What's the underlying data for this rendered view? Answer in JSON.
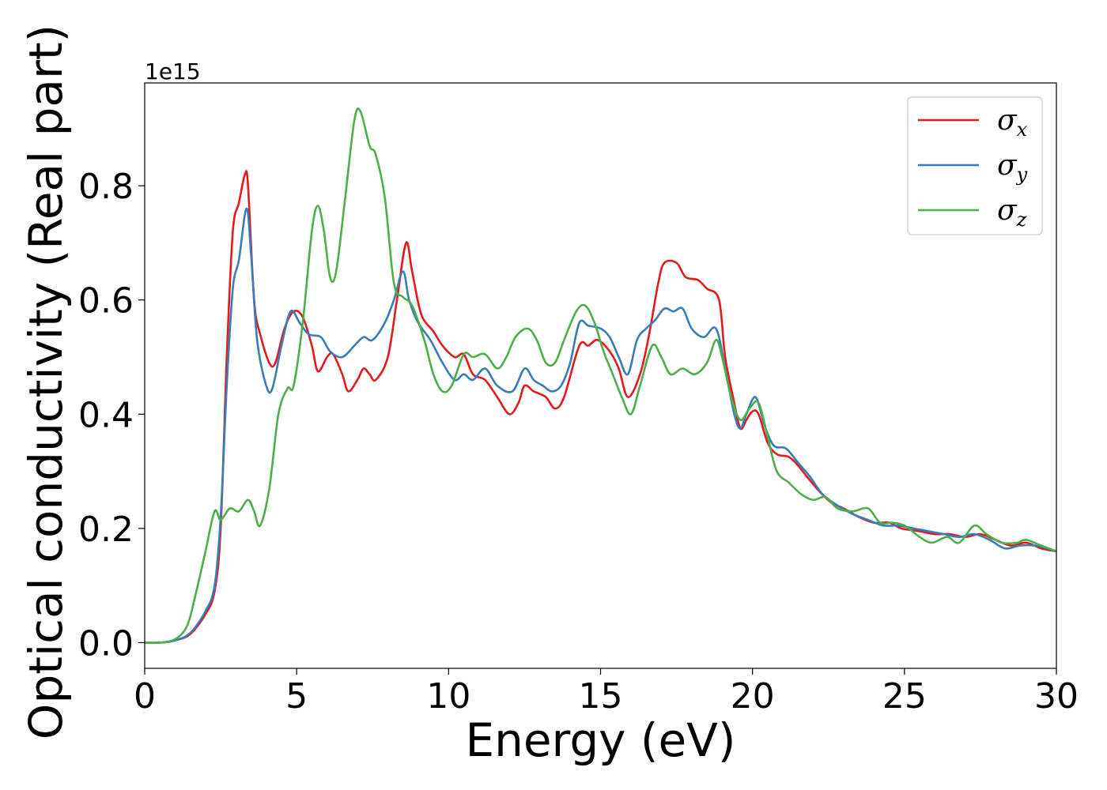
{
  "chart_data": {
    "type": "line",
    "xlabel": "Energy (eV)",
    "ylabel": "Optical conductivity (Real part)",
    "y_offset_label": "1e15",
    "xlim": [
      0,
      30
    ],
    "ylim": [
      -0.045,
      0.98
    ],
    "xticks": [
      0,
      5,
      10,
      15,
      20,
      25,
      30
    ],
    "yticks": [
      0.0,
      0.2,
      0.4,
      0.6,
      0.8
    ],
    "xtick_labels": [
      "0",
      "5",
      "10",
      "15",
      "20",
      "25",
      "30"
    ],
    "ytick_labels": [
      "0.0",
      "0.2",
      "0.4",
      "0.6",
      "0.8"
    ],
    "grid": false,
    "legend_position": "top-right",
    "series": [
      {
        "name": "σx",
        "symbol": "σ",
        "subscript": "x",
        "color": "#e41a1c",
        "points": [
          [
            0,
            0
          ],
          [
            0.5,
            0
          ],
          [
            1,
            0.004
          ],
          [
            1.5,
            0.015
          ],
          [
            2,
            0.05
          ],
          [
            2.3,
            0.09
          ],
          [
            2.5,
            0.2
          ],
          [
            2.7,
            0.5
          ],
          [
            2.9,
            0.72
          ],
          [
            3.1,
            0.77
          ],
          [
            3.3,
            0.82
          ],
          [
            3.4,
            0.8
          ],
          [
            3.6,
            0.6
          ],
          [
            3.8,
            0.54
          ],
          [
            4.1,
            0.49
          ],
          [
            4.3,
            0.49
          ],
          [
            4.6,
            0.55
          ],
          [
            4.9,
            0.58
          ],
          [
            5.2,
            0.57
          ],
          [
            5.5,
            0.52
          ],
          [
            5.7,
            0.475
          ],
          [
            6,
            0.5
          ],
          [
            6.2,
            0.505
          ],
          [
            6.5,
            0.47
          ],
          [
            6.7,
            0.44
          ],
          [
            7,
            0.46
          ],
          [
            7.2,
            0.48
          ],
          [
            7.4,
            0.47
          ],
          [
            7.6,
            0.46
          ],
          [
            8,
            0.5
          ],
          [
            8.3,
            0.6
          ],
          [
            8.6,
            0.7
          ],
          [
            8.8,
            0.65
          ],
          [
            9.1,
            0.575
          ],
          [
            9.5,
            0.545
          ],
          [
            9.8,
            0.52
          ],
          [
            10.2,
            0.5
          ],
          [
            10.5,
            0.505
          ],
          [
            10.8,
            0.47
          ],
          [
            11.2,
            0.46
          ],
          [
            11.6,
            0.43
          ],
          [
            12,
            0.4
          ],
          [
            12.3,
            0.42
          ],
          [
            12.5,
            0.45
          ],
          [
            12.8,
            0.44
          ],
          [
            13.2,
            0.43
          ],
          [
            13.5,
            0.41
          ],
          [
            13.8,
            0.43
          ],
          [
            14.3,
            0.52
          ],
          [
            14.6,
            0.52
          ],
          [
            14.9,
            0.53
          ],
          [
            15.3,
            0.51
          ],
          [
            15.6,
            0.48
          ],
          [
            15.9,
            0.43
          ],
          [
            16.3,
            0.47
          ],
          [
            16.6,
            0.54
          ],
          [
            16.9,
            0.63
          ],
          [
            17.1,
            0.665
          ],
          [
            17.5,
            0.665
          ],
          [
            17.8,
            0.64
          ],
          [
            18.2,
            0.635
          ],
          [
            18.5,
            0.62
          ],
          [
            18.9,
            0.6
          ],
          [
            19.1,
            0.5
          ],
          [
            19.4,
            0.42
          ],
          [
            19.6,
            0.375
          ],
          [
            19.8,
            0.39
          ],
          [
            20,
            0.405
          ],
          [
            20.2,
            0.4
          ],
          [
            20.5,
            0.35
          ],
          [
            20.8,
            0.33
          ],
          [
            21.2,
            0.325
          ],
          [
            21.5,
            0.31
          ],
          [
            21.8,
            0.29
          ],
          [
            22.2,
            0.265
          ],
          [
            22.6,
            0.245
          ],
          [
            23,
            0.235
          ],
          [
            23.5,
            0.22
          ],
          [
            24,
            0.21
          ],
          [
            24.5,
            0.21
          ],
          [
            24.9,
            0.2
          ],
          [
            25.5,
            0.195
          ],
          [
            26,
            0.19
          ],
          [
            26.5,
            0.19
          ],
          [
            27,
            0.185
          ],
          [
            27.5,
            0.19
          ],
          [
            28,
            0.18
          ],
          [
            28.5,
            0.17
          ],
          [
            29,
            0.175
          ],
          [
            29.5,
            0.165
          ],
          [
            30,
            0.16
          ]
        ]
      },
      {
        "name": "σy",
        "symbol": "σ",
        "subscript": "y",
        "color": "#377eb8",
        "points": [
          [
            0,
            0
          ],
          [
            0.5,
            0
          ],
          [
            1,
            0.004
          ],
          [
            1.5,
            0.017
          ],
          [
            2,
            0.055
          ],
          [
            2.3,
            0.1
          ],
          [
            2.5,
            0.22
          ],
          [
            2.7,
            0.45
          ],
          [
            2.9,
            0.62
          ],
          [
            3.1,
            0.67
          ],
          [
            3.35,
            0.76
          ],
          [
            3.5,
            0.68
          ],
          [
            3.7,
            0.53
          ],
          [
            4,
            0.45
          ],
          [
            4.2,
            0.445
          ],
          [
            4.5,
            0.52
          ],
          [
            4.8,
            0.58
          ],
          [
            5.1,
            0.56
          ],
          [
            5.4,
            0.54
          ],
          [
            5.8,
            0.535
          ],
          [
            6.1,
            0.51
          ],
          [
            6.5,
            0.5
          ],
          [
            6.9,
            0.52
          ],
          [
            7.2,
            0.535
          ],
          [
            7.5,
            0.53
          ],
          [
            7.9,
            0.56
          ],
          [
            8.2,
            0.6
          ],
          [
            8.5,
            0.65
          ],
          [
            8.7,
            0.6
          ],
          [
            9,
            0.56
          ],
          [
            9.4,
            0.53
          ],
          [
            9.8,
            0.49
          ],
          [
            10.2,
            0.46
          ],
          [
            10.5,
            0.47
          ],
          [
            10.8,
            0.46
          ],
          [
            11.2,
            0.48
          ],
          [
            11.6,
            0.45
          ],
          [
            12.1,
            0.44
          ],
          [
            12.5,
            0.48
          ],
          [
            12.8,
            0.46
          ],
          [
            13.1,
            0.45
          ],
          [
            13.4,
            0.44
          ],
          [
            13.7,
            0.45
          ],
          [
            14,
            0.49
          ],
          [
            14.3,
            0.56
          ],
          [
            14.6,
            0.555
          ],
          [
            15,
            0.55
          ],
          [
            15.3,
            0.535
          ],
          [
            15.6,
            0.5
          ],
          [
            15.9,
            0.47
          ],
          [
            16.2,
            0.53
          ],
          [
            16.5,
            0.55
          ],
          [
            16.8,
            0.565
          ],
          [
            17.1,
            0.585
          ],
          [
            17.4,
            0.58
          ],
          [
            17.7,
            0.585
          ],
          [
            18,
            0.55
          ],
          [
            18.4,
            0.535
          ],
          [
            18.8,
            0.55
          ],
          [
            19.1,
            0.48
          ],
          [
            19.4,
            0.4
          ],
          [
            19.6,
            0.375
          ],
          [
            19.8,
            0.4
          ],
          [
            20.1,
            0.43
          ],
          [
            20.4,
            0.38
          ],
          [
            20.7,
            0.345
          ],
          [
            21.1,
            0.34
          ],
          [
            21.5,
            0.315
          ],
          [
            21.9,
            0.29
          ],
          [
            22.3,
            0.26
          ],
          [
            22.8,
            0.24
          ],
          [
            23.3,
            0.225
          ],
          [
            23.8,
            0.215
          ],
          [
            24.3,
            0.205
          ],
          [
            24.8,
            0.205
          ],
          [
            25.3,
            0.2
          ],
          [
            25.8,
            0.195
          ],
          [
            26.3,
            0.19
          ],
          [
            26.8,
            0.185
          ],
          [
            27.3,
            0.19
          ],
          [
            27.8,
            0.18
          ],
          [
            28.3,
            0.165
          ],
          [
            28.8,
            0.17
          ],
          [
            29.3,
            0.17
          ],
          [
            29.7,
            0.165
          ],
          [
            30,
            0.16
          ]
        ]
      },
      {
        "name": "σz",
        "symbol": "σ",
        "subscript": "z",
        "color": "#4daf4a",
        "points": [
          [
            0,
            0
          ],
          [
            0.5,
            0
          ],
          [
            1,
            0.006
          ],
          [
            1.4,
            0.03
          ],
          [
            1.7,
            0.09
          ],
          [
            2,
            0.16
          ],
          [
            2.3,
            0.23
          ],
          [
            2.5,
            0.215
          ],
          [
            2.8,
            0.235
          ],
          [
            3.1,
            0.23
          ],
          [
            3.4,
            0.25
          ],
          [
            3.6,
            0.23
          ],
          [
            3.8,
            0.205
          ],
          [
            4.1,
            0.27
          ],
          [
            4.4,
            0.4
          ],
          [
            4.7,
            0.445
          ],
          [
            4.9,
            0.45
          ],
          [
            5.2,
            0.56
          ],
          [
            5.5,
            0.72
          ],
          [
            5.7,
            0.765
          ],
          [
            5.9,
            0.72
          ],
          [
            6.1,
            0.64
          ],
          [
            6.3,
            0.65
          ],
          [
            6.6,
            0.78
          ],
          [
            6.9,
            0.915
          ],
          [
            7.1,
            0.93
          ],
          [
            7.4,
            0.87
          ],
          [
            7.6,
            0.855
          ],
          [
            7.9,
            0.78
          ],
          [
            8.2,
            0.63
          ],
          [
            8.5,
            0.605
          ],
          [
            8.8,
            0.59
          ],
          [
            9.2,
            0.53
          ],
          [
            9.5,
            0.47
          ],
          [
            9.8,
            0.44
          ],
          [
            10.1,
            0.45
          ],
          [
            10.5,
            0.505
          ],
          [
            10.8,
            0.5
          ],
          [
            11.2,
            0.505
          ],
          [
            11.6,
            0.48
          ],
          [
            11.9,
            0.5
          ],
          [
            12.2,
            0.535
          ],
          [
            12.6,
            0.55
          ],
          [
            12.9,
            0.53
          ],
          [
            13.2,
            0.49
          ],
          [
            13.5,
            0.49
          ],
          [
            13.8,
            0.53
          ],
          [
            14.2,
            0.58
          ],
          [
            14.5,
            0.59
          ],
          [
            14.8,
            0.56
          ],
          [
            15.1,
            0.51
          ],
          [
            15.4,
            0.47
          ],
          [
            15.7,
            0.43
          ],
          [
            16,
            0.4
          ],
          [
            16.3,
            0.45
          ],
          [
            16.7,
            0.52
          ],
          [
            17,
            0.5
          ],
          [
            17.3,
            0.47
          ],
          [
            17.7,
            0.48
          ],
          [
            18.1,
            0.47
          ],
          [
            18.5,
            0.49
          ],
          [
            18.8,
            0.53
          ],
          [
            19,
            0.5
          ],
          [
            19.3,
            0.43
          ],
          [
            19.6,
            0.39
          ],
          [
            19.9,
            0.41
          ],
          [
            20.2,
            0.42
          ],
          [
            20.5,
            0.36
          ],
          [
            20.8,
            0.3
          ],
          [
            21.2,
            0.28
          ],
          [
            21.6,
            0.26
          ],
          [
            22,
            0.25
          ],
          [
            22.4,
            0.255
          ],
          [
            22.8,
            0.235
          ],
          [
            23.3,
            0.23
          ],
          [
            23.8,
            0.235
          ],
          [
            24.2,
            0.21
          ],
          [
            24.6,
            0.21
          ],
          [
            25,
            0.205
          ],
          [
            25.5,
            0.185
          ],
          [
            25.9,
            0.175
          ],
          [
            26.4,
            0.185
          ],
          [
            26.8,
            0.175
          ],
          [
            27.3,
            0.205
          ],
          [
            27.7,
            0.19
          ],
          [
            28.2,
            0.175
          ],
          [
            28.7,
            0.175
          ],
          [
            29,
            0.18
          ],
          [
            29.5,
            0.17
          ],
          [
            30,
            0.16
          ]
        ]
      }
    ]
  }
}
